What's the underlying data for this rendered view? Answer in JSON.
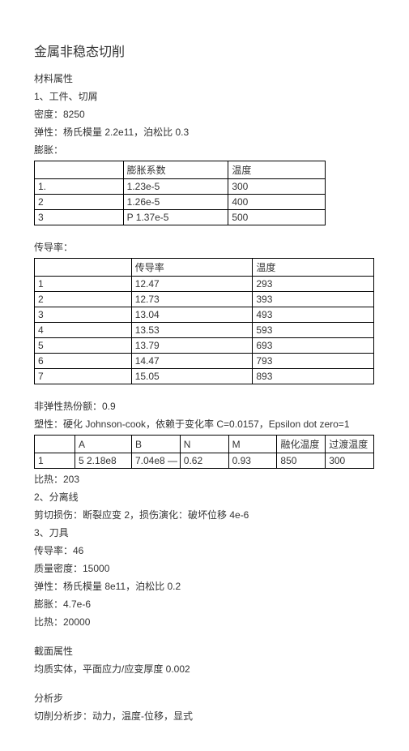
{
  "title": "金属非稳态切削",
  "sec1": {
    "heading": "材料属性",
    "line1": "1、工件、切屑",
    "density": "密度：8250",
    "elastic": "弹性：杨氏模量 2.2e11，泊松比 0.3",
    "expand_label": "膨胀：",
    "table_expand": {
      "headers": [
        "",
        "膨胀系数",
        "温度"
      ],
      "rows": [
        [
          "1.",
          "1.23e-5",
          "300"
        ],
        [
          "2",
          "1.26e-5",
          "400"
        ],
        [
          "3",
          "P 1.37e-5",
          "500"
        ]
      ]
    },
    "cond_label": "传导率：",
    "table_cond": {
      "headers": [
        "",
        "传导率",
        "温度"
      ],
      "rows": [
        [
          "1",
          "12.47",
          "293"
        ],
        [
          "2",
          "12.73",
          "393"
        ],
        [
          "3",
          "13.04",
          "493"
        ],
        [
          "4",
          "13.53",
          "  593"
        ],
        [
          "5",
          "13.79",
          "693"
        ],
        [
          "6",
          "14.47",
          "  793"
        ],
        [
          "7",
          "15.05",
          "893"
        ]
      ]
    },
    "inelastic": "非弹性热份额：0.9",
    "plastic": "塑性：硬化 Johnson-cook，依赖于变化率 C=0.0157，Epsilon dot zero=1",
    "table_plastic": {
      "headers": [
        "",
        "A",
        "B",
        "N",
        "M",
        "融化温度",
        "过渡温度"
      ],
      "rows": [
        [
          "1",
          "5  2.18e8",
          "7.04e8 —",
          "0.62",
          "0.93",
          "850",
          "300"
        ]
      ]
    },
    "biheat1": "比热：203",
    "sep_line": "2、分离线",
    "shear": "剪切损伤：断裂应变 2，损伤演化：破坏位移 4e-6",
    "tool": "3、刀具",
    "cond2": "传导率：46",
    "massdensity": "质量密度：15000",
    "elastic2": "弹性：杨氏模量 8e11，泊松比 0.2",
    "expand2": "膨胀：4.7e-6",
    "biheat2": "比热：20000"
  },
  "sec2": {
    "heading": "截面属性",
    "line1": "均质实体，平面应力/应变厚度 0.002"
  },
  "sec3": {
    "heading": "分析步",
    "line1": "切削分析步：动力，温度-位移，显式"
  }
}
